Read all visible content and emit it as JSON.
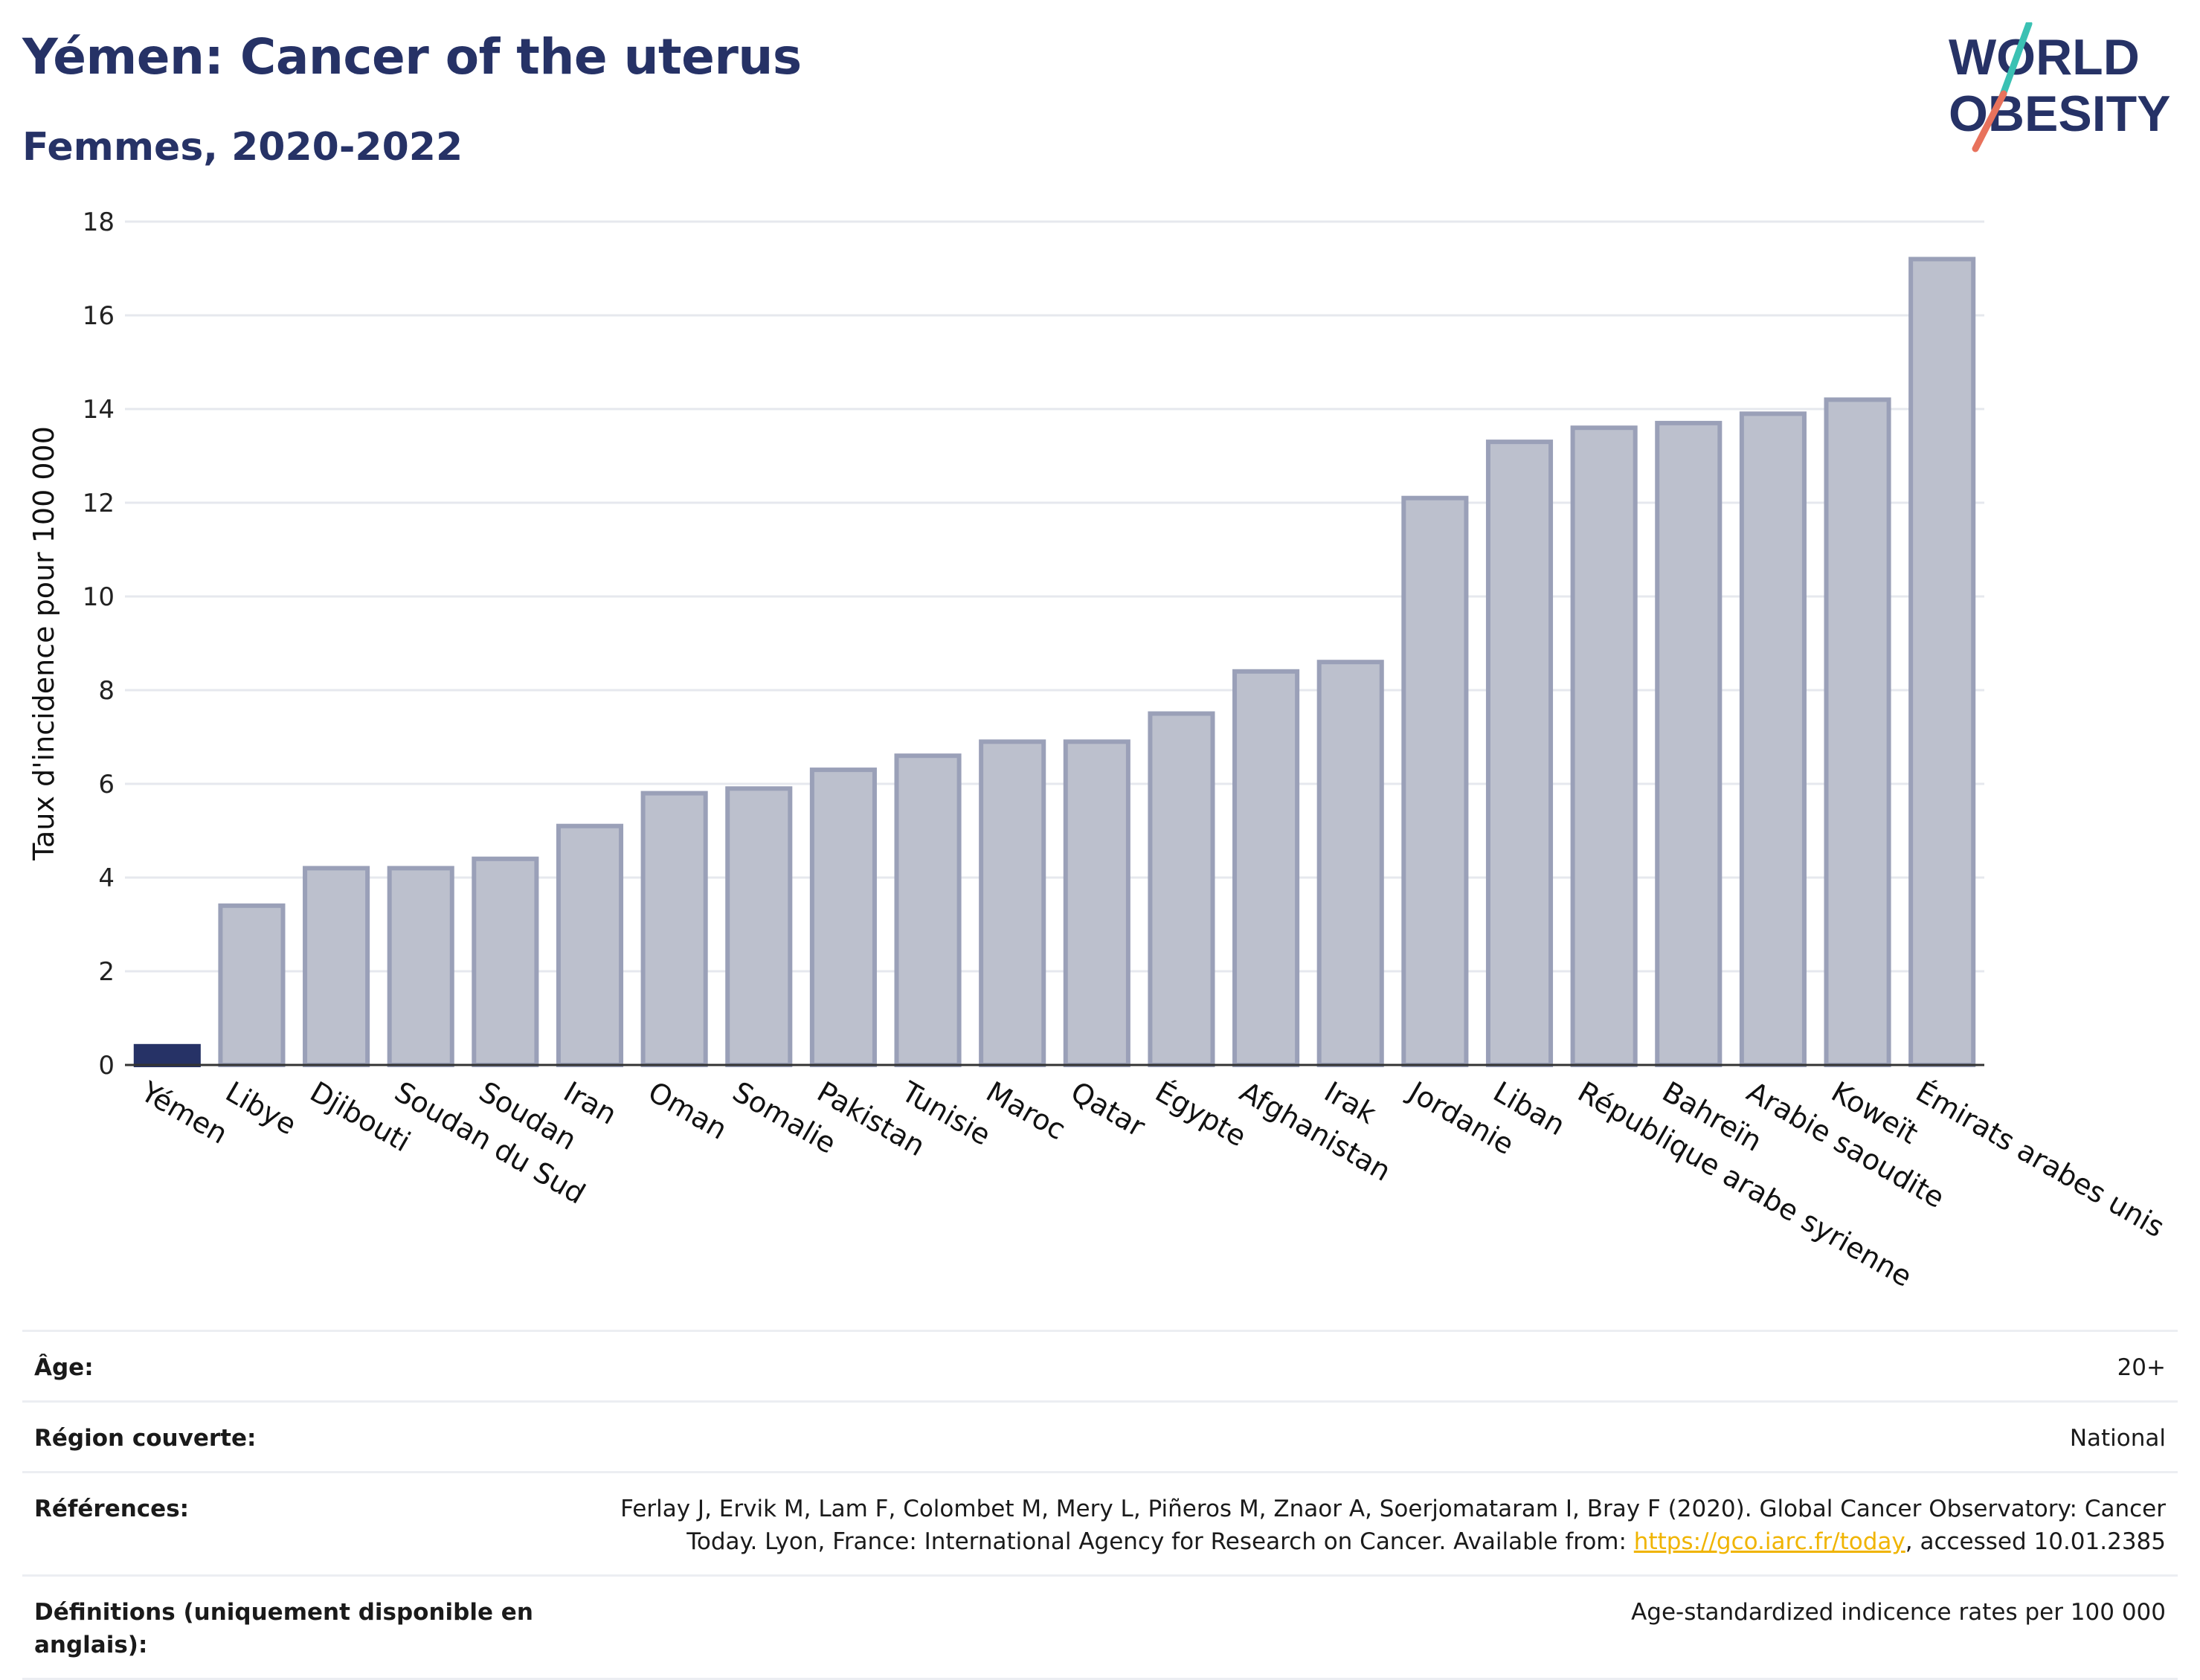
{
  "header": {
    "title": "Yémen: Cancer of the uterus",
    "subtitle": "Femmes, 2020-2022"
  },
  "logo": {
    "line1": "WORLD",
    "line2": "OBESITY",
    "slash_colors": [
      "#3bc1b3",
      "#e8725c"
    ],
    "text_color": "#263266"
  },
  "colors": {
    "highlight_bar": "#263266",
    "other_bar_fill": "#bcc0cd",
    "other_bar_stroke": "#9aa0b8",
    "grid": "#e6e8ee",
    "axis": "#333333",
    "link": "#f0b400"
  },
  "chart_data": {
    "type": "bar",
    "ylabel": "Taux d'incidence pour 100 000",
    "ylim": [
      0,
      18
    ],
    "yticks": [
      0,
      2,
      4,
      6,
      8,
      10,
      12,
      14,
      16,
      18
    ],
    "grid": true,
    "highlight": "Yémen",
    "categories": [
      "Yémen",
      "Libye",
      "Djibouti",
      "Soudan du Sud",
      "Soudan",
      "Iran",
      "Oman",
      "Somalie",
      "Pakistan",
      "Tunisie",
      "Maroc",
      "Qatar",
      "Égypte",
      "Afghanistan",
      "Irak",
      "Jordanie",
      "Liban",
      "République arabe syrienne",
      "Bahreïn",
      "Arabie saoudite",
      "Koweït",
      "Émirats arabes unis"
    ],
    "values": [
      0.4,
      3.4,
      4.2,
      4.2,
      4.4,
      5.1,
      5.8,
      5.9,
      6.3,
      6.6,
      6.9,
      6.9,
      7.5,
      8.4,
      8.6,
      12.1,
      13.3,
      13.6,
      13.7,
      13.9,
      14.2,
      17.2
    ]
  },
  "metadata": {
    "age_label": "Âge:",
    "age_value": "20+",
    "region_label": "Région couverte:",
    "region_value": "National",
    "references_label": "Références:",
    "references_text": "Ferlay J, Ervik M, Lam F, Colombet M, Mery L, Piñeros M, Znaor A, Soerjomataram I, Bray F (2020). Global Cancer Observatory: Cancer Today. Lyon, France: International Agency for Research on Cancer. Available from: ",
    "references_link": "https://gco.iarc.fr/today",
    "references_suffix": ", accessed 10.01.2385",
    "definitions_label": "Définitions (uniquement disponible en anglais):",
    "definitions_value": "Age-standardized indicence rates per 100 000"
  }
}
